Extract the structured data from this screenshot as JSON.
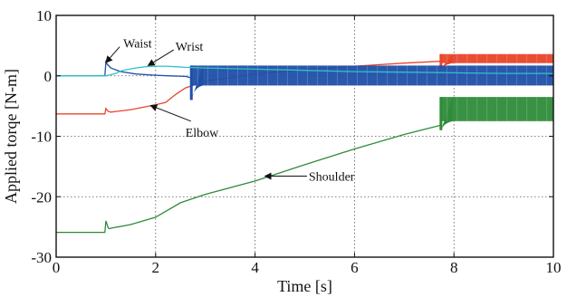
{
  "chart_data": {
    "type": "line",
    "title": "",
    "xlabel": "Time [s]",
    "ylabel": "Applied torqe [N-m]",
    "xlim": [
      0,
      10
    ],
    "ylim": [
      -30,
      10
    ],
    "xticks": [
      0,
      2,
      4,
      6,
      8,
      10
    ],
    "yticks": [
      10,
      0,
      -10,
      -20,
      -30
    ],
    "grid": true,
    "series": [
      {
        "name": "Shoulder",
        "color": "#2e8b3a",
        "x": [
          0,
          0.98,
          1.0,
          1.05,
          1.08,
          1.1,
          1.5,
          2.0,
          2.5,
          3.0,
          4.0,
          5.0,
          6.0,
          7.0,
          7.72
        ],
        "y": [
          -25.9,
          -25.9,
          -24.0,
          -25.2,
          -25.3,
          -25.2,
          -24.6,
          -23.4,
          -21.0,
          -19.6,
          -17.4,
          -14.7,
          -12.1,
          -9.7,
          -8.2
        ],
        "band": {
          "x0": 7.72,
          "x1": 10.0,
          "y_top": -3.5,
          "y_bot": -7.5,
          "spike_bot": -9.0
        }
      },
      {
        "name": "Elbow",
        "color": "#e8452a",
        "x": [
          0,
          0.98,
          1.0,
          1.05,
          1.1,
          1.5,
          2.0,
          2.2,
          2.4,
          2.6,
          3.0,
          4.0,
          5.0,
          6.0,
          7.0,
          7.72
        ],
        "y": [
          -6.3,
          -6.3,
          -5.4,
          -5.9,
          -6.0,
          -5.6,
          -4.8,
          -4.4,
          -3.1,
          -2.0,
          -0.9,
          0.3,
          1.0,
          1.6,
          2.1,
          2.4
        ],
        "band": {
          "x0": 7.72,
          "x1": 10.0,
          "y_top": 3.6,
          "y_bot": 2.1,
          "spike_bot": 1.2
        }
      },
      {
        "name": "Waist",
        "color": "#1f4fa8",
        "x": [
          0,
          0.98,
          1.0,
          1.03,
          1.1,
          1.3,
          1.6,
          2.0,
          2.3,
          2.6,
          2.7
        ],
        "y": [
          0.0,
          0.0,
          2.3,
          1.9,
          1.3,
          0.7,
          0.3,
          0.1,
          0.0,
          -0.1,
          -0.3
        ],
        "band": {
          "x0": 2.7,
          "x1": 10.0,
          "y_top": 1.7,
          "y_bot": -1.6,
          "spike_bot": -4.0
        }
      },
      {
        "name": "Wrist",
        "color": "#2ec4c8",
        "x": [
          0,
          1.0,
          1.2,
          1.3,
          1.4,
          1.6,
          1.8,
          2.0,
          2.2,
          2.4,
          2.6,
          3.0,
          4.0,
          5.0,
          6.0,
          7.0,
          8.0,
          9.0,
          10.0
        ],
        "y": [
          0.0,
          0.0,
          0.4,
          0.8,
          1.0,
          1.3,
          1.5,
          1.6,
          1.6,
          1.5,
          1.4,
          1.3,
          1.1,
          0.9,
          0.7,
          0.6,
          0.5,
          0.4,
          0.4
        ]
      }
    ],
    "annotations": [
      {
        "text": "Waist",
        "x": 1.35,
        "y": 5.4,
        "arrow_to": [
          1.0,
          2.2
        ]
      },
      {
        "text": "Wrist",
        "x": 2.4,
        "y": 4.9,
        "arrow_to": [
          1.85,
          1.7
        ]
      },
      {
        "text": "Elbow",
        "x": 2.6,
        "y": -9.3,
        "arrow_to": [
          1.9,
          -4.9
        ]
      },
      {
        "text": "Shoulder",
        "x": 5.08,
        "y": -16.6,
        "arrow_to": [
          4.2,
          -16.6
        ]
      }
    ]
  }
}
